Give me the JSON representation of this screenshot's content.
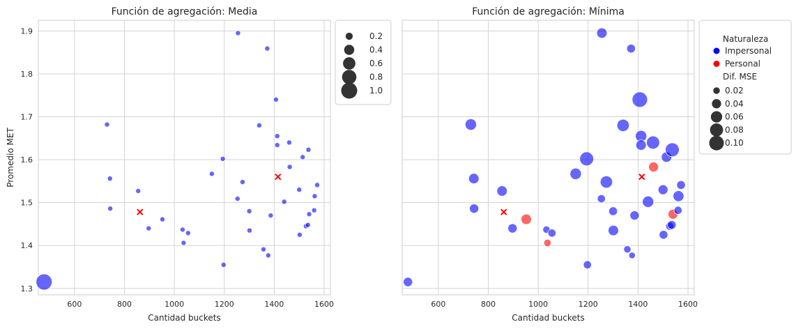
{
  "colors": {
    "impersonal": "#0000ff",
    "personal": "#ff0000",
    "size_legend": "#333333",
    "grid": "#d3d3d3"
  },
  "chart_data": [
    {
      "type": "scatter",
      "title": "Función de agregación: Media",
      "xlabel": "Cantidad buckets",
      "ylabel": "Promedio MET",
      "xlim": [
        455,
        1625
      ],
      "ylim": [
        1.285,
        1.925
      ],
      "xticks": [
        600,
        800,
        1000,
        1200,
        1400,
        1600
      ],
      "yticks": [
        1.3,
        1.4,
        1.5,
        1.6,
        1.7,
        1.8,
        1.9
      ],
      "ytick_labels": [
        "1.3",
        "1.4",
        "1.5",
        "1.6",
        "1.7",
        "1.8",
        "1.9"
      ],
      "legend": {
        "position": "outside-right",
        "title": "",
        "entries": [
          {
            "label": "0.2",
            "size_value": 0.2
          },
          {
            "label": "0.4",
            "size_value": 0.4
          },
          {
            "label": "0.6",
            "size_value": 0.6
          },
          {
            "label": "0.8",
            "size_value": 0.8
          },
          {
            "label": "1.0",
            "size_value": 1.0
          }
        ]
      },
      "points": [
        {
          "x": 478,
          "y": 1.315,
          "size": 1.0,
          "kind": "impersonal"
        },
        {
          "x": 730,
          "y": 1.682,
          "size": 0.1,
          "kind": "impersonal"
        },
        {
          "x": 742,
          "y": 1.556,
          "size": 0.1,
          "kind": "impersonal"
        },
        {
          "x": 743,
          "y": 1.486,
          "size": 0.1,
          "kind": "impersonal"
        },
        {
          "x": 855,
          "y": 1.527,
          "size": 0.1,
          "kind": "impersonal"
        },
        {
          "x": 897,
          "y": 1.44,
          "size": 0.1,
          "kind": "impersonal"
        },
        {
          "x": 952,
          "y": 1.461,
          "size": 0.1,
          "kind": "impersonal"
        },
        {
          "x": 1033,
          "y": 1.437,
          "size": 0.1,
          "kind": "impersonal"
        },
        {
          "x": 1037,
          "y": 1.406,
          "size": 0.1,
          "kind": "impersonal"
        },
        {
          "x": 1055,
          "y": 1.429,
          "size": 0.1,
          "kind": "impersonal"
        },
        {
          "x": 1150,
          "y": 1.567,
          "size": 0.1,
          "kind": "impersonal"
        },
        {
          "x": 1194,
          "y": 1.602,
          "size": 0.1,
          "kind": "impersonal"
        },
        {
          "x": 1197,
          "y": 1.355,
          "size": 0.1,
          "kind": "impersonal"
        },
        {
          "x": 1253,
          "y": 1.509,
          "size": 0.1,
          "kind": "impersonal"
        },
        {
          "x": 1255,
          "y": 1.895,
          "size": 0.1,
          "kind": "impersonal"
        },
        {
          "x": 1273,
          "y": 1.548,
          "size": 0.1,
          "kind": "impersonal"
        },
        {
          "x": 1300,
          "y": 1.48,
          "size": 0.1,
          "kind": "impersonal"
        },
        {
          "x": 1301,
          "y": 1.435,
          "size": 0.1,
          "kind": "impersonal"
        },
        {
          "x": 1340,
          "y": 1.68,
          "size": 0.1,
          "kind": "impersonal"
        },
        {
          "x": 1357,
          "y": 1.391,
          "size": 0.1,
          "kind": "impersonal"
        },
        {
          "x": 1372,
          "y": 1.859,
          "size": 0.1,
          "kind": "impersonal"
        },
        {
          "x": 1376,
          "y": 1.377,
          "size": 0.1,
          "kind": "impersonal"
        },
        {
          "x": 1386,
          "y": 1.47,
          "size": 0.1,
          "kind": "impersonal"
        },
        {
          "x": 1407,
          "y": 1.74,
          "size": 0.1,
          "kind": "impersonal"
        },
        {
          "x": 1412,
          "y": 1.655,
          "size": 0.1,
          "kind": "impersonal"
        },
        {
          "x": 1412,
          "y": 1.634,
          "size": 0.1,
          "kind": "impersonal"
        },
        {
          "x": 1440,
          "y": 1.502,
          "size": 0.1,
          "kind": "impersonal"
        },
        {
          "x": 1460,
          "y": 1.64,
          "size": 0.1,
          "kind": "impersonal"
        },
        {
          "x": 1462,
          "y": 1.583,
          "size": 0.1,
          "kind": "impersonal"
        },
        {
          "x": 1500,
          "y": 1.53,
          "size": 0.1,
          "kind": "impersonal"
        },
        {
          "x": 1502,
          "y": 1.425,
          "size": 0.1,
          "kind": "impersonal"
        },
        {
          "x": 1514,
          "y": 1.606,
          "size": 0.1,
          "kind": "impersonal"
        },
        {
          "x": 1527,
          "y": 1.445,
          "size": 0.1,
          "kind": "impersonal"
        },
        {
          "x": 1535,
          "y": 1.448,
          "size": 0.1,
          "kind": "impersonal"
        },
        {
          "x": 1537,
          "y": 1.623,
          "size": 0.1,
          "kind": "impersonal"
        },
        {
          "x": 1540,
          "y": 1.473,
          "size": 0.1,
          "kind": "impersonal"
        },
        {
          "x": 1560,
          "y": 1.482,
          "size": 0.1,
          "kind": "impersonal"
        },
        {
          "x": 1562,
          "y": 1.515,
          "size": 0.1,
          "kind": "impersonal"
        },
        {
          "x": 1572,
          "y": 1.541,
          "size": 0.1,
          "kind": "impersonal"
        }
      ],
      "markers": [
        {
          "x": 862,
          "y": 1.478,
          "symbol": "x"
        },
        {
          "x": 1415,
          "y": 1.56,
          "symbol": "x"
        }
      ]
    },
    {
      "type": "scatter",
      "title": "Función de agregación: Mínima",
      "xlabel": "Cantidad buckets",
      "ylabel": "",
      "xlim": [
        455,
        1625
      ],
      "ylim": [
        1.285,
        1.925
      ],
      "xticks": [
        600,
        800,
        1000,
        1200,
        1400,
        1600
      ],
      "yticks": [],
      "ytick_labels": [],
      "legend": {
        "position": "outside-right",
        "hue_title": "Naturaleza",
        "hue_entries": [
          {
            "label": "Impersonal",
            "kind": "impersonal"
          },
          {
            "label": "Personal",
            "kind": "personal"
          }
        ],
        "size_title": "Dif. MSE",
        "entries": [
          {
            "label": "0.02",
            "size_value": 0.02
          },
          {
            "label": "0.04",
            "size_value": 0.04
          },
          {
            "label": "0.06",
            "size_value": 0.06
          },
          {
            "label": "0.08",
            "size_value": 0.08
          },
          {
            "label": "0.10",
            "size_value": 0.1
          }
        ]
      },
      "points": [
        {
          "x": 478,
          "y": 1.315,
          "size": 0.04,
          "kind": "impersonal"
        },
        {
          "x": 730,
          "y": 1.682,
          "size": 0.06,
          "kind": "impersonal"
        },
        {
          "x": 742,
          "y": 1.556,
          "size": 0.05,
          "kind": "impersonal"
        },
        {
          "x": 743,
          "y": 1.486,
          "size": 0.04,
          "kind": "impersonal"
        },
        {
          "x": 855,
          "y": 1.527,
          "size": 0.05,
          "kind": "impersonal"
        },
        {
          "x": 897,
          "y": 1.44,
          "size": 0.04,
          "kind": "impersonal"
        },
        {
          "x": 952,
          "y": 1.461,
          "size": 0.05,
          "kind": "personal"
        },
        {
          "x": 1033,
          "y": 1.437,
          "size": 0.025,
          "kind": "impersonal"
        },
        {
          "x": 1037,
          "y": 1.406,
          "size": 0.025,
          "kind": "personal"
        },
        {
          "x": 1055,
          "y": 1.429,
          "size": 0.03,
          "kind": "impersonal"
        },
        {
          "x": 1150,
          "y": 1.567,
          "size": 0.06,
          "kind": "impersonal"
        },
        {
          "x": 1194,
          "y": 1.602,
          "size": 0.09,
          "kind": "impersonal"
        },
        {
          "x": 1197,
          "y": 1.355,
          "size": 0.03,
          "kind": "impersonal"
        },
        {
          "x": 1253,
          "y": 1.509,
          "size": 0.03,
          "kind": "impersonal"
        },
        {
          "x": 1255,
          "y": 1.895,
          "size": 0.05,
          "kind": "impersonal"
        },
        {
          "x": 1273,
          "y": 1.548,
          "size": 0.07,
          "kind": "impersonal"
        },
        {
          "x": 1300,
          "y": 1.48,
          "size": 0.035,
          "kind": "impersonal"
        },
        {
          "x": 1301,
          "y": 1.435,
          "size": 0.05,
          "kind": "impersonal"
        },
        {
          "x": 1340,
          "y": 1.68,
          "size": 0.07,
          "kind": "impersonal"
        },
        {
          "x": 1357,
          "y": 1.391,
          "size": 0.025,
          "kind": "impersonal"
        },
        {
          "x": 1372,
          "y": 1.859,
          "size": 0.035,
          "kind": "impersonal"
        },
        {
          "x": 1376,
          "y": 1.377,
          "size": 0.02,
          "kind": "impersonal"
        },
        {
          "x": 1386,
          "y": 1.47,
          "size": 0.04,
          "kind": "impersonal"
        },
        {
          "x": 1407,
          "y": 1.74,
          "size": 0.11,
          "kind": "impersonal"
        },
        {
          "x": 1412,
          "y": 1.655,
          "size": 0.06,
          "kind": "impersonal"
        },
        {
          "x": 1412,
          "y": 1.634,
          "size": 0.05,
          "kind": "impersonal"
        },
        {
          "x": 1440,
          "y": 1.502,
          "size": 0.06,
          "kind": "impersonal"
        },
        {
          "x": 1460,
          "y": 1.64,
          "size": 0.08,
          "kind": "impersonal"
        },
        {
          "x": 1462,
          "y": 1.583,
          "size": 0.045,
          "kind": "personal"
        },
        {
          "x": 1500,
          "y": 1.53,
          "size": 0.045,
          "kind": "impersonal"
        },
        {
          "x": 1502,
          "y": 1.425,
          "size": 0.035,
          "kind": "impersonal"
        },
        {
          "x": 1514,
          "y": 1.606,
          "size": 0.05,
          "kind": "impersonal"
        },
        {
          "x": 1527,
          "y": 1.445,
          "size": 0.03,
          "kind": "impersonal"
        },
        {
          "x": 1535,
          "y": 1.448,
          "size": 0.035,
          "kind": "impersonal"
        },
        {
          "x": 1537,
          "y": 1.623,
          "size": 0.09,
          "kind": "impersonal"
        },
        {
          "x": 1540,
          "y": 1.473,
          "size": 0.045,
          "kind": "personal"
        },
        {
          "x": 1560,
          "y": 1.482,
          "size": 0.03,
          "kind": "impersonal"
        },
        {
          "x": 1562,
          "y": 1.515,
          "size": 0.055,
          "kind": "impersonal"
        },
        {
          "x": 1572,
          "y": 1.541,
          "size": 0.035,
          "kind": "impersonal"
        }
      ],
      "markers": [
        {
          "x": 862,
          "y": 1.478,
          "symbol": "x"
        },
        {
          "x": 1415,
          "y": 1.56,
          "symbol": "x"
        }
      ]
    }
  ]
}
